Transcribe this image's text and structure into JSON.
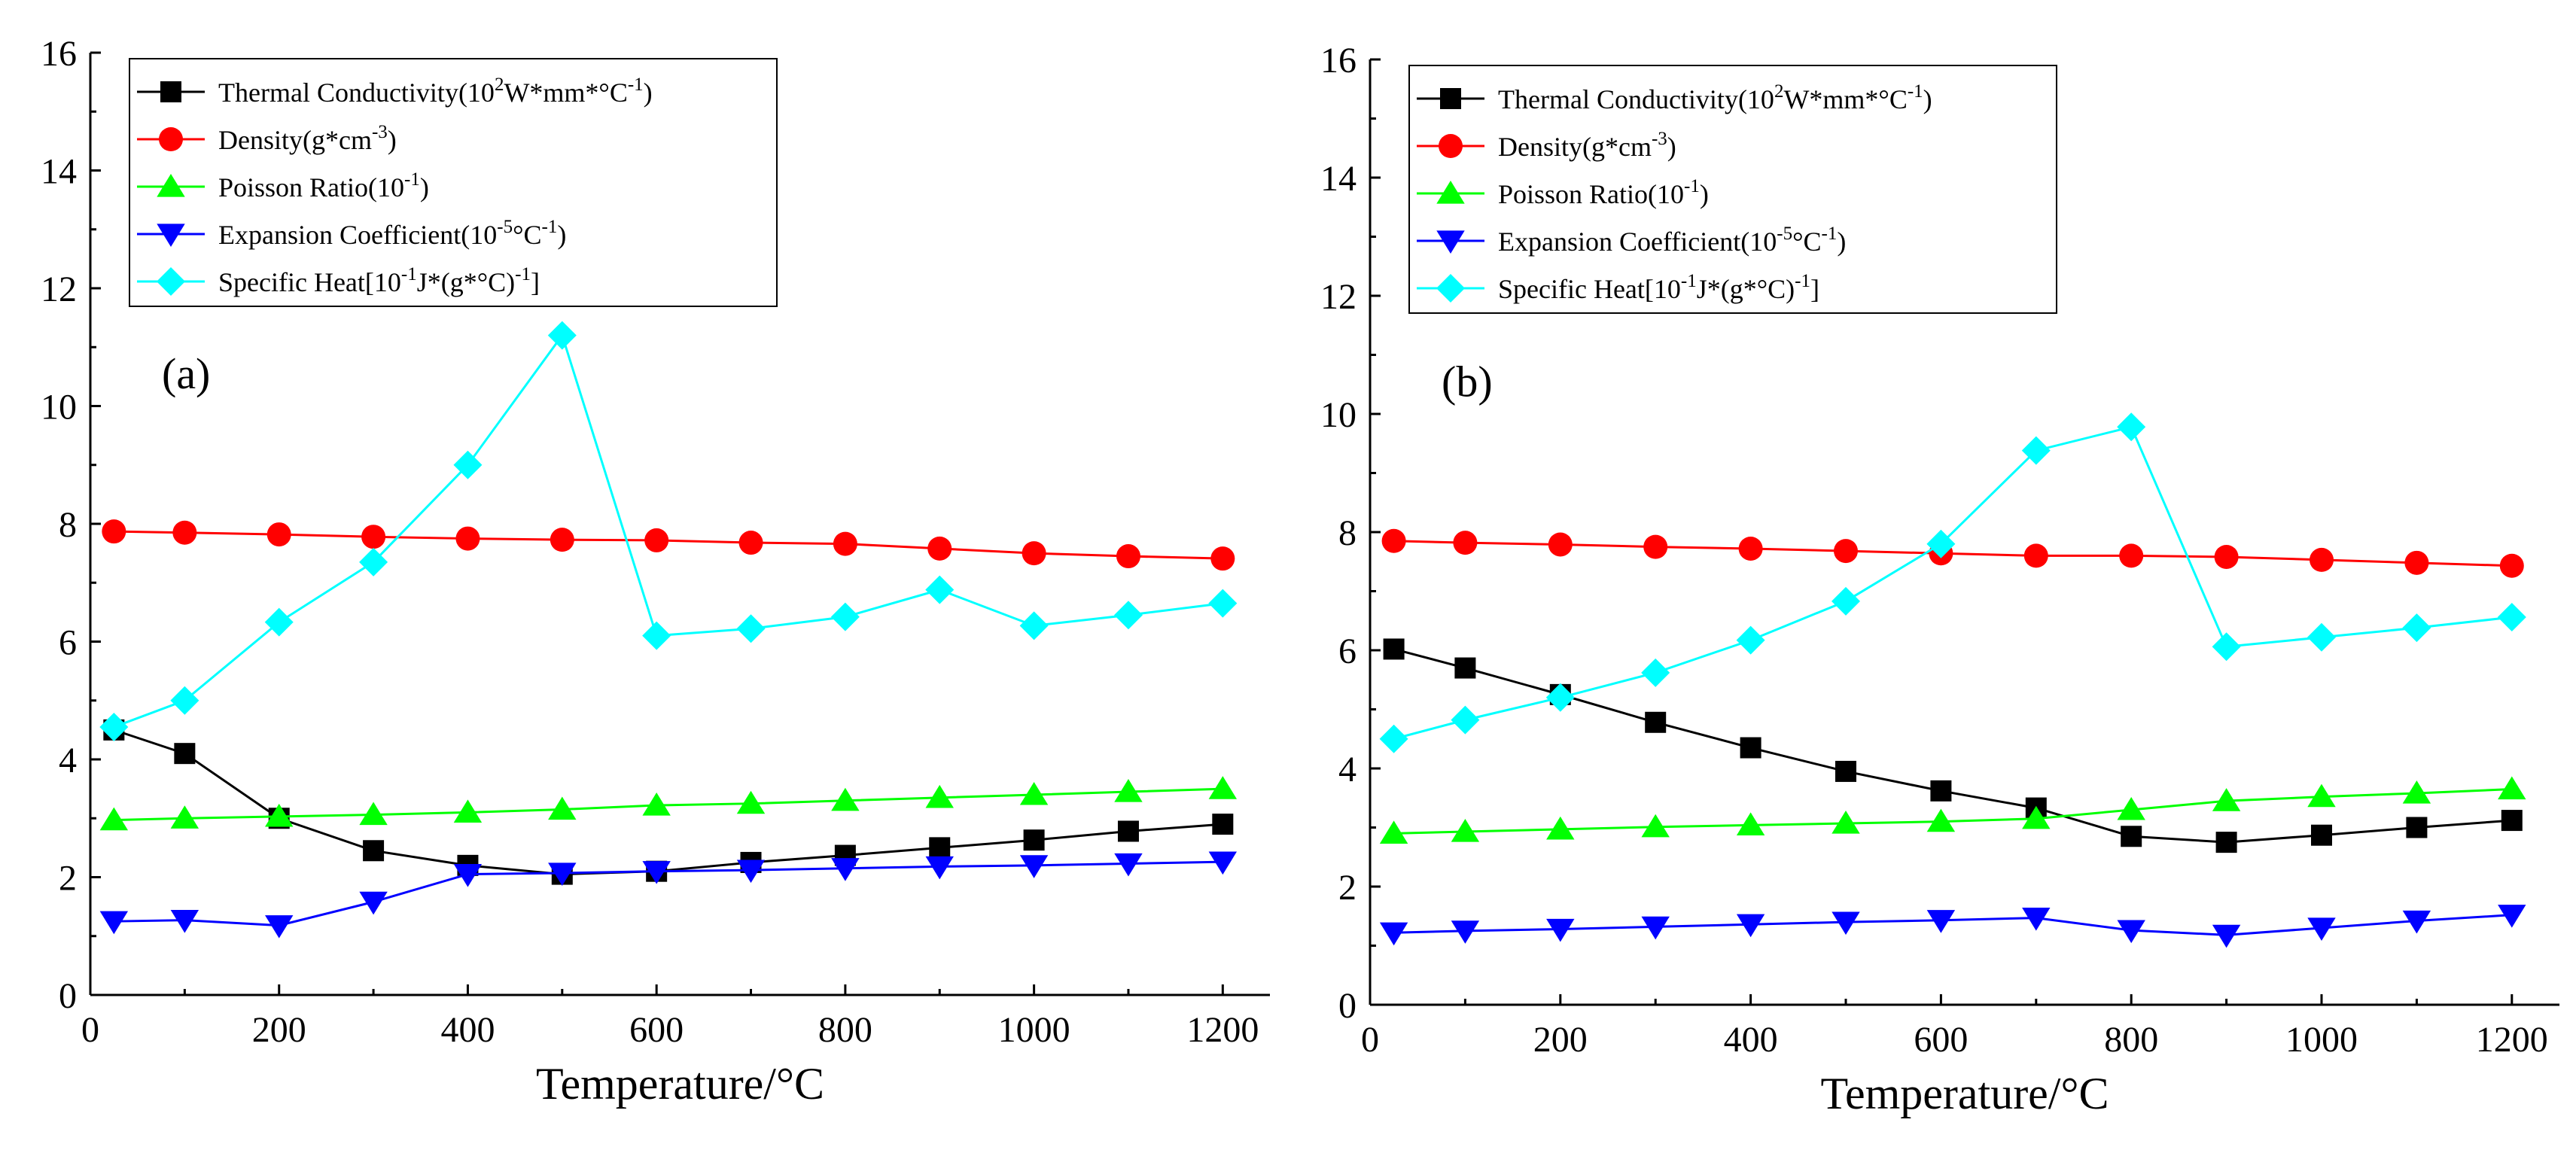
{
  "chart_data": [
    {
      "type": "line",
      "panel_label": "(a)",
      "xlabel": "Temperature/°C",
      "ylabel": "",
      "xlim": [
        0,
        1250
      ],
      "ylim": [
        0,
        16
      ],
      "xticks": [
        0,
        200,
        400,
        600,
        800,
        1000,
        1200
      ],
      "yticks": [
        0,
        2,
        4,
        6,
        8,
        10,
        12,
        14,
        16
      ],
      "x": [
        25,
        100,
        200,
        300,
        400,
        500,
        600,
        700,
        800,
        900,
        1000,
        1100,
        1200
      ],
      "series": [
        {
          "key": "thermal",
          "name": "Thermal Conductivity(10",
          "name_sup": "2",
          "name_mid": "W*mm*°C",
          "name_sup2": "-1",
          "name_end": ")",
          "color": "#000000",
          "marker": "square",
          "values": [
            4.5,
            4.1,
            3.0,
            2.45,
            2.2,
            2.05,
            2.1,
            2.25,
            2.37,
            2.5,
            2.63,
            2.78,
            2.9
          ]
        },
        {
          "key": "density",
          "name": "Density(g*cm",
          "name_sup": "-3",
          "name_mid": "",
          "name_sup2": "",
          "name_end": ")",
          "color": "#ff0000",
          "marker": "circle",
          "values": [
            7.87,
            7.85,
            7.82,
            7.78,
            7.75,
            7.73,
            7.72,
            7.68,
            7.66,
            7.58,
            7.5,
            7.45,
            7.41
          ]
        },
        {
          "key": "poisson",
          "name": "Poisson Ratio(10",
          "name_sup": "-1",
          "name_mid": "",
          "name_sup2": "",
          "name_end": ")",
          "color": "#00ff00",
          "marker": "triangle-up",
          "values": [
            2.97,
            3.0,
            3.03,
            3.06,
            3.1,
            3.15,
            3.22,
            3.25,
            3.3,
            3.35,
            3.4,
            3.45,
            3.5
          ]
        },
        {
          "key": "expansion",
          "name": "Expansion Coefficient(10",
          "name_sup": "-5",
          "name_mid": "°C",
          "name_sup2": "-1",
          "name_end": ")",
          "color": "#0000ff",
          "marker": "triangle-down",
          "values": [
            1.25,
            1.27,
            1.18,
            1.58,
            2.05,
            2.07,
            2.1,
            2.12,
            2.15,
            2.18,
            2.2,
            2.23,
            2.26
          ]
        },
        {
          "key": "specific",
          "name": "Specific Heat[10",
          "name_sup": "-1",
          "name_mid": "J*(g*°C)",
          "name_sup2": "-1",
          "name_end": "]",
          "color": "#00ffff",
          "marker": "diamond",
          "values": [
            4.55,
            5.0,
            6.33,
            7.35,
            9.0,
            11.2,
            6.1,
            6.22,
            6.42,
            6.88,
            6.27,
            6.45,
            6.65
          ]
        }
      ]
    },
    {
      "type": "line",
      "panel_label": "(b)",
      "xlabel": "Temperature/°C",
      "ylabel": "",
      "xlim": [
        0,
        1250
      ],
      "ylim": [
        0,
        16
      ],
      "xticks": [
        0,
        200,
        400,
        600,
        800,
        1000,
        1200
      ],
      "yticks": [
        0,
        2,
        4,
        6,
        8,
        10,
        12,
        14,
        16
      ],
      "x": [
        25,
        100,
        200,
        300,
        400,
        500,
        600,
        700,
        800,
        900,
        1000,
        1100,
        1200
      ],
      "series": [
        {
          "key": "thermal",
          "name": "Thermal Conductivity(10",
          "name_sup": "2",
          "name_mid": "W*mm*°C",
          "name_sup2": "-1",
          "name_end": ")",
          "color": "#000000",
          "marker": "square",
          "values": [
            6.02,
            5.7,
            5.25,
            4.78,
            4.35,
            3.95,
            3.62,
            3.33,
            2.85,
            2.75,
            2.87,
            3.0,
            3.12
          ]
        },
        {
          "key": "density",
          "name": "Density(g*cm",
          "name_sup": "-3",
          "name_mid": "",
          "name_sup2": "",
          "name_end": ")",
          "color": "#ff0000",
          "marker": "circle",
          "values": [
            7.85,
            7.82,
            7.79,
            7.75,
            7.72,
            7.68,
            7.64,
            7.6,
            7.6,
            7.58,
            7.53,
            7.48,
            7.43
          ]
        },
        {
          "key": "poisson",
          "name": "Poisson Ratio(10",
          "name_sup": "-1",
          "name_mid": "",
          "name_sup2": "",
          "name_end": ")",
          "color": "#00ff00",
          "marker": "triangle-up",
          "values": [
            2.9,
            2.93,
            2.97,
            3.01,
            3.04,
            3.07,
            3.1,
            3.15,
            3.3,
            3.45,
            3.52,
            3.58,
            3.65
          ]
        },
        {
          "key": "expansion",
          "name": "Expansion Coefficient(10",
          "name_sup": "-5",
          "name_mid": "°C",
          "name_sup2": "-1",
          "name_end": ")",
          "color": "#0000ff",
          "marker": "triangle-down",
          "values": [
            1.22,
            1.25,
            1.28,
            1.32,
            1.36,
            1.4,
            1.43,
            1.47,
            1.26,
            1.18,
            1.3,
            1.42,
            1.52
          ]
        },
        {
          "key": "specific",
          "name": "Specific Heat[10",
          "name_sup": "-1",
          "name_mid": "J*(g*°C)",
          "name_sup2": "-1",
          "name_end": "]",
          "color": "#00ffff",
          "marker": "diamond",
          "values": [
            4.5,
            4.82,
            5.2,
            5.62,
            6.17,
            6.83,
            7.8,
            9.38,
            9.78,
            6.06,
            6.22,
            6.38,
            6.56
          ]
        }
      ]
    }
  ]
}
